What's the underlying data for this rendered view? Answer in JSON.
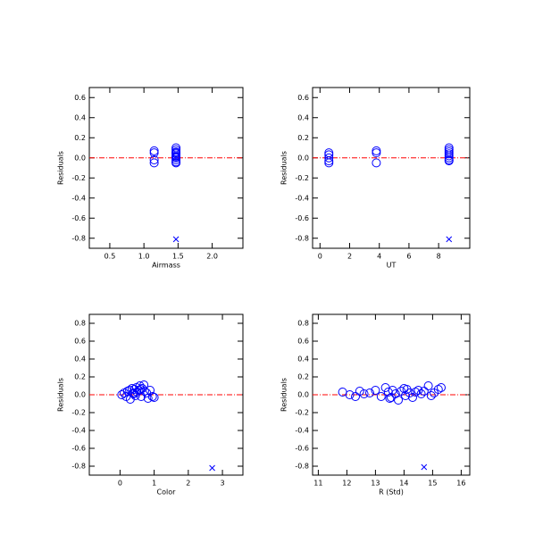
{
  "chart_data": [
    {
      "type": "scatter",
      "xlabel": "Airmass",
      "ylabel": "Residuals",
      "xlim": [
        0.2,
        2.45
      ],
      "ylim": [
        -0.9,
        0.7
      ],
      "xticks": [
        0.5,
        {
          "value": 1,
          "label": "1.0"
        },
        1.5,
        {
          "value": 2,
          "label": "2.0"
        }
      ],
      "yticks": [
        0.6,
        0.4,
        0.2,
        {
          "value": 0,
          "label": "0.0"
        },
        -0.2,
        -0.4,
        -0.6,
        -0.8
      ],
      "reference_line": 0,
      "reference_color": "#ff0000",
      "series": [
        {
          "marker": "circle",
          "color": "#0000ff",
          "x": [
            1.15,
            1.15,
            1.15,
            1.15,
            1.47,
            1.47,
            1.47,
            1.47,
            1.47,
            1.47,
            1.47,
            1.47,
            1.47,
            1.47,
            1.47
          ],
          "values": [
            0.07,
            0.05,
            -0.02,
            -0.05,
            0.1,
            0.08,
            0.06,
            0.05,
            0.04,
            0.02,
            0.01,
            0,
            -0.02,
            -0.04,
            -0.05
          ]
        },
        {
          "marker": "cross",
          "color": "#0000ff",
          "x": [
            1.47
          ],
          "values": [
            -0.81
          ]
        }
      ]
    },
    {
      "type": "scatter",
      "xlabel": "UT",
      "ylabel": "Residuals",
      "xlim": [
        -0.5,
        10.1
      ],
      "ylim": [
        -0.9,
        0.7
      ],
      "xticks": [
        0,
        2,
        4,
        6,
        8
      ],
      "yticks": [
        0.6,
        0.4,
        0.2,
        {
          "value": 0,
          "label": "0.0"
        },
        -0.2,
        -0.4,
        -0.6,
        -0.8
      ],
      "reference_line": 0,
      "reference_color": "#ff0000",
      "series": [
        {
          "marker": "circle",
          "color": "#0000ff",
          "x": [
            0.6,
            0.6,
            0.6,
            0.6,
            0.6,
            3.8,
            3.8,
            3.8,
            8.7,
            8.7,
            8.7,
            8.7,
            8.7,
            8.7,
            8.7,
            8.7
          ],
          "values": [
            0.05,
            0.03,
            0,
            -0.03,
            -0.05,
            0.07,
            0.05,
            -0.05,
            0.1,
            0.08,
            0.06,
            0.04,
            0.02,
            0,
            -0.02,
            -0.03
          ]
        },
        {
          "marker": "cross",
          "color": "#0000ff",
          "x": [
            8.7
          ],
          "values": [
            -0.81
          ]
        }
      ]
    },
    {
      "type": "scatter",
      "xlabel": "Color",
      "ylabel": "Residuals",
      "xlim": [
        -0.9,
        3.6
      ],
      "ylim": [
        -0.9,
        0.9
      ],
      "xticks": [
        0,
        1,
        2,
        3
      ],
      "yticks": [
        0.8,
        0.6,
        0.4,
        0.2,
        {
          "value": 0,
          "label": "0.0"
        },
        -0.2,
        -0.4,
        -0.6,
        -0.8
      ],
      "reference_line": 0,
      "reference_color": "#ff0000",
      "series": [
        {
          "marker": "circle",
          "color": "#0000ff",
          "x": [
            0.05,
            0.12,
            0.18,
            0.22,
            0.28,
            0.3,
            0.35,
            0.38,
            0.42,
            0.45,
            0.48,
            0.5,
            0.55,
            0.58,
            0.6,
            0.62,
            0.65,
            0.7,
            0.72,
            0.78,
            0.82,
            0.88,
            0.95,
            1.0,
            0.4
          ],
          "values": [
            0,
            0.02,
            -0.02,
            0.04,
            0.05,
            -0.05,
            0.07,
            0.02,
            0.06,
            -0.01,
            0.08,
            0.03,
            0.05,
            0.1,
            0.06,
            -0.02,
            0.07,
            0.11,
            0.04,
            0.02,
            -0.04,
            0.05,
            -0.02,
            -0.03,
            0.01
          ]
        },
        {
          "marker": "cross",
          "color": "#0000ff",
          "x": [
            2.7
          ],
          "values": [
            -0.82
          ]
        }
      ]
    },
    {
      "type": "scatter",
      "xlabel": "R (Std)",
      "ylabel": "Residuals",
      "xlim": [
        10.8,
        16.3
      ],
      "ylim": [
        -0.9,
        0.9
      ],
      "xticks": [
        11,
        12,
        13,
        14,
        15,
        16
      ],
      "yticks": [
        0.8,
        0.6,
        0.4,
        0.2,
        {
          "value": 0,
          "label": "0.0"
        },
        -0.2,
        -0.4,
        -0.6,
        -0.8
      ],
      "reference_line": 0,
      "reference_color": "#ff0000",
      "series": [
        {
          "marker": "circle",
          "color": "#0000ff",
          "x": [
            11.85,
            12.1,
            12.3,
            12.45,
            12.6,
            12.8,
            13.0,
            13.2,
            13.35,
            13.45,
            13.5,
            13.6,
            13.7,
            13.8,
            13.9,
            14.0,
            14.05,
            14.1,
            14.2,
            14.3,
            14.4,
            14.5,
            14.6,
            14.7,
            14.85,
            14.95,
            15.05,
            15.2,
            15.3,
            13.55
          ],
          "values": [
            0.03,
            0,
            -0.02,
            0.04,
            0.01,
            0.02,
            0.05,
            -0.02,
            0.08,
            0.03,
            -0.04,
            0.05,
            0.01,
            -0.06,
            0.04,
            0.07,
            -0.01,
            0.06,
            0.02,
            -0.03,
            0.03,
            0.05,
            0.01,
            0.04,
            0.1,
            -0.01,
            0.02,
            0.06,
            0.08,
            -0.03
          ]
        },
        {
          "marker": "cross",
          "color": "#0000ff",
          "x": [
            14.7
          ],
          "values": [
            -0.81
          ]
        }
      ]
    }
  ]
}
